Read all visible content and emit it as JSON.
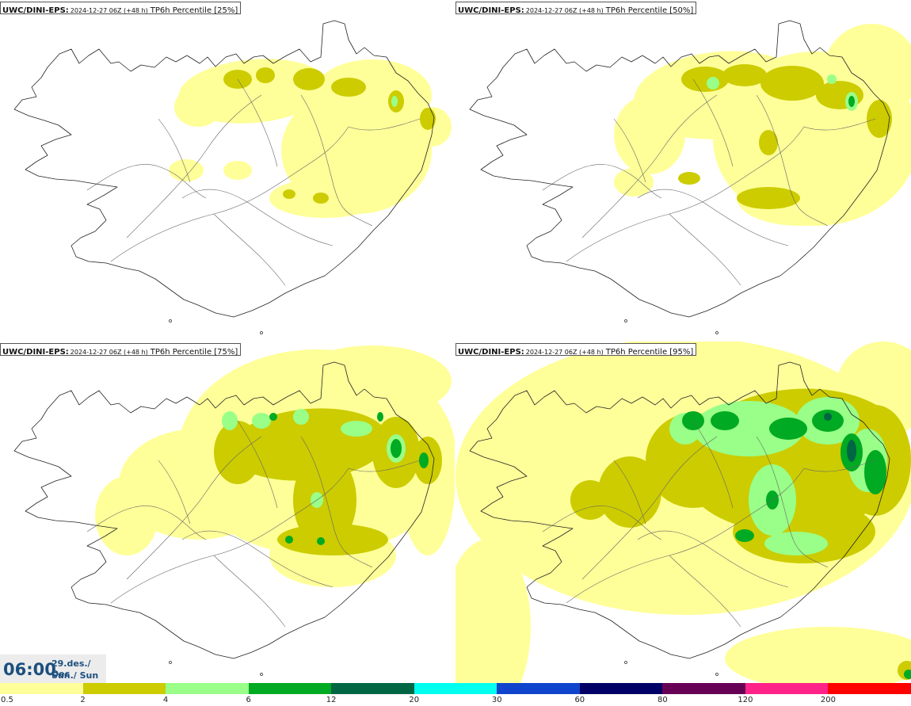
{
  "panels": [
    {
      "source": "UWC/DINI-EPS",
      "run": "2024-12-27 06Z (+48 h)",
      "variable": "TP6h Percentile [25%]"
    },
    {
      "source": "UWC/DINI-EPS",
      "run": "2024-12-27 06Z (+48 h)",
      "variable": "TP6h Percentile [50%]"
    },
    {
      "source": "UWC/DINI-EPS",
      "run": "2024-12-27 06Z (+48 h)",
      "variable": "TP6h Percentile [75%]"
    },
    {
      "source": "UWC/DINI-EPS",
      "run": "2024-12-27 06Z (+48 h)",
      "variable": "TP6h Percentile [95%]"
    }
  ],
  "valid_time": {
    "time": "06:00",
    "date": "29.des./ Dec",
    "day": "Sun./ Sun"
  },
  "colorbar": {
    "labels": [
      "0.5",
      "2",
      "4",
      "6",
      "12",
      "20",
      "30",
      "60",
      "80",
      "120",
      "200"
    ],
    "colors": [
      "#ffff99",
      "#cccc00",
      "#99ff88",
      "#00aa22",
      "#006644",
      "#00ffee",
      "#1144cc",
      "#000066",
      "#660055",
      "#ff2288",
      "#ff0000"
    ]
  },
  "colors": {
    "light_yellow": "#ffff99",
    "olive": "#cccc00",
    "light_green": "#99ff88",
    "green": "#00aa22",
    "dark_green": "#006644",
    "coast": "#222222",
    "valid_time_text": "#1c4f7e"
  }
}
